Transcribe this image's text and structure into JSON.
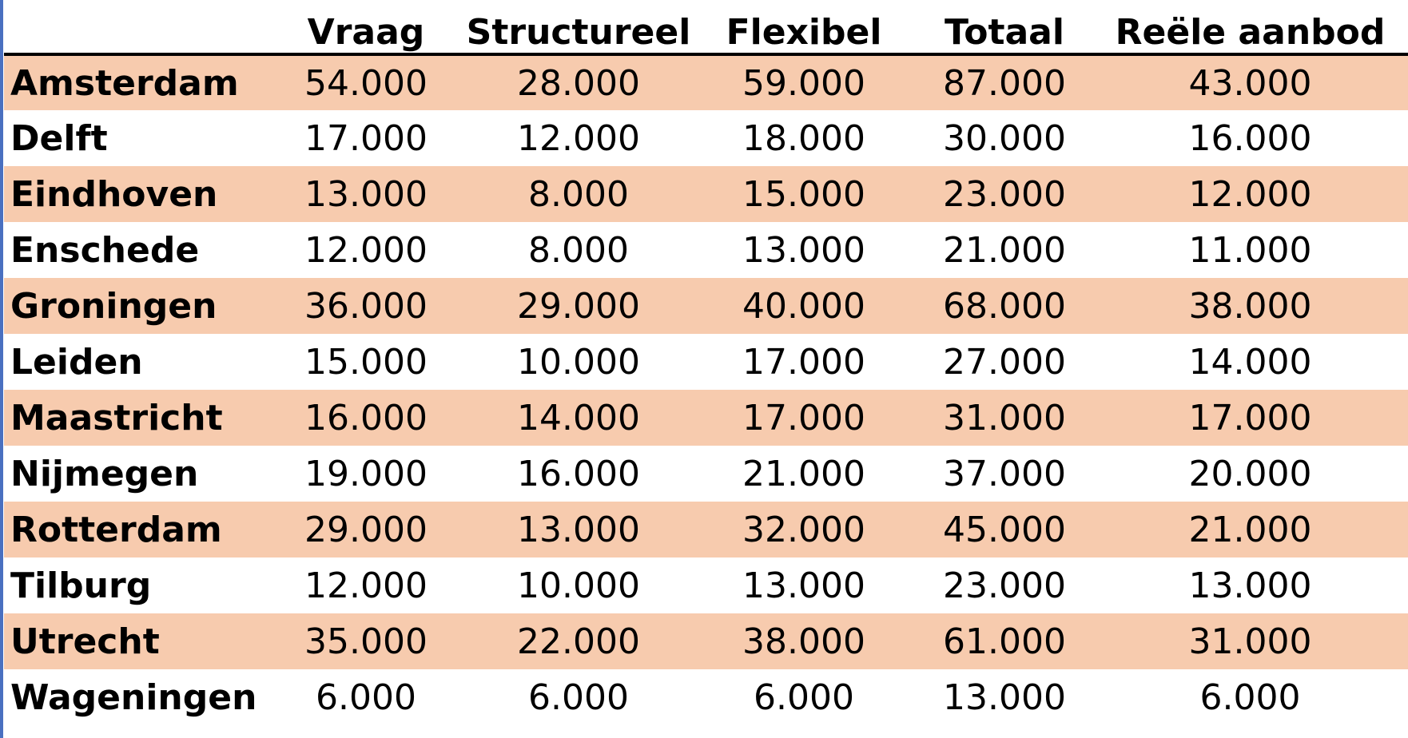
{
  "chart_data": {
    "type": "table",
    "columns": [
      "",
      "Vraag",
      "Structureel",
      "Flexibel",
      "Totaal",
      "Reële aanbod"
    ],
    "rows": [
      {
        "city": "Amsterdam",
        "values": [
          "54.000",
          "28.000",
          "59.000",
          "87.000",
          "43.000"
        ]
      },
      {
        "city": "Delft",
        "values": [
          "17.000",
          "12.000",
          "18.000",
          "30.000",
          "16.000"
        ]
      },
      {
        "city": "Eindhoven",
        "values": [
          "13.000",
          "8.000",
          "15.000",
          "23.000",
          "12.000"
        ]
      },
      {
        "city": "Enschede",
        "values": [
          "12.000",
          "8.000",
          "13.000",
          "21.000",
          "11.000"
        ]
      },
      {
        "city": "Groningen",
        "values": [
          "36.000",
          "29.000",
          "40.000",
          "68.000",
          "38.000"
        ]
      },
      {
        "city": "Leiden",
        "values": [
          "15.000",
          "10.000",
          "17.000",
          "27.000",
          "14.000"
        ]
      },
      {
        "city": "Maastricht",
        "values": [
          "16.000",
          "14.000",
          "17.000",
          "31.000",
          "17.000"
        ]
      },
      {
        "city": "Nijmegen",
        "values": [
          "19.000",
          "16.000",
          "21.000",
          "37.000",
          "20.000"
        ]
      },
      {
        "city": "Rotterdam",
        "values": [
          "29.000",
          "13.000",
          "32.000",
          "45.000",
          "21.000"
        ]
      },
      {
        "city": "Tilburg",
        "values": [
          "12.000",
          "10.000",
          "13.000",
          "23.000",
          "13.000"
        ]
      },
      {
        "city": "Utrecht",
        "values": [
          "35.000",
          "22.000",
          "38.000",
          "61.000",
          "31.000"
        ]
      },
      {
        "city": "Wageningen",
        "values": [
          "6.000",
          "6.000",
          "6.000",
          "13.000",
          "6.000"
        ]
      }
    ]
  },
  "colors": {
    "stripe": "#f7cbae",
    "header_rule": "#000000",
    "left_edge": "#4a70c0"
  }
}
